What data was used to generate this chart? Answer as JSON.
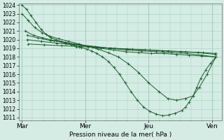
{
  "bg_color": "#d4ece4",
  "grid_color": "#a8ccc0",
  "line_color": "#1a5c2a",
  "xlabel": "Pression niveau de la mer( hPa )",
  "ylim": [
    1011,
    1024
  ],
  "ytick_min": 1011,
  "ytick_max": 1024,
  "xtick_labels": [
    "Mar",
    "Mer",
    "Jeu",
    "Ven"
  ],
  "xtick_positions": [
    0.0,
    1.0,
    2.0,
    3.0
  ],
  "xlim": [
    -0.05,
    3.15
  ],
  "lines": [
    {
      "x": [
        0.0,
        0.07,
        0.14,
        0.22,
        0.3,
        0.38,
        0.46,
        0.54,
        0.62,
        0.7,
        0.78,
        0.86,
        0.94,
        1.02,
        1.1,
        1.18,
        1.27,
        1.36,
        1.45,
        1.54,
        1.63,
        1.72,
        1.82,
        1.92,
        2.02,
        2.12,
        2.22,
        2.32,
        2.42,
        2.52,
        2.58,
        2.64,
        2.7,
        2.76,
        2.82,
        2.9,
        2.98,
        3.06
      ],
      "y": [
        1024.0,
        1023.5,
        1022.8,
        1022.0,
        1021.2,
        1020.6,
        1020.2,
        1020.0,
        1019.8,
        1019.6,
        1019.4,
        1019.2,
        1019.1,
        1018.9,
        1018.7,
        1018.4,
        1018.0,
        1017.5,
        1016.8,
        1016.0,
        1015.0,
        1014.0,
        1013.0,
        1012.2,
        1011.7,
        1011.4,
        1011.2,
        1011.3,
        1011.5,
        1011.8,
        1012.2,
        1012.8,
        1013.5,
        1014.5,
        1015.5,
        1016.5,
        1017.3,
        1018.0
      ]
    },
    {
      "x": [
        0.0,
        0.1,
        0.2,
        0.32,
        0.44,
        0.58,
        0.74,
        0.9,
        1.05,
        1.2,
        1.36,
        1.52,
        1.68,
        1.84,
        2.0,
        2.16,
        2.3,
        2.44,
        2.58,
        2.7,
        2.8,
        2.92,
        3.06
      ],
      "y": [
        1023.0,
        1022.2,
        1021.4,
        1020.8,
        1020.4,
        1020.1,
        1019.8,
        1019.5,
        1019.2,
        1018.9,
        1018.5,
        1018.0,
        1017.2,
        1016.2,
        1015.0,
        1014.0,
        1013.2,
        1013.0,
        1013.2,
        1013.5,
        1014.5,
        1016.0,
        1018.0
      ]
    },
    {
      "x": [
        0.05,
        0.18,
        0.33,
        0.5,
        0.68,
        0.86,
        1.04,
        1.24,
        1.44,
        1.64,
        1.84,
        2.04,
        2.24,
        2.44,
        2.64,
        2.84,
        3.06
      ],
      "y": [
        1021.0,
        1020.5,
        1020.2,
        1019.9,
        1019.6,
        1019.4,
        1019.2,
        1019.0,
        1018.8,
        1018.6,
        1018.5,
        1018.4,
        1018.4,
        1018.3,
        1018.2,
        1018.1,
        1018.0
      ]
    },
    {
      "x": [
        0.08,
        0.25,
        0.45,
        0.68,
        0.92,
        1.16,
        1.4,
        1.64,
        1.88,
        2.12,
        2.36,
        2.6,
        2.84,
        3.06
      ],
      "y": [
        1020.5,
        1020.2,
        1019.9,
        1019.7,
        1019.4,
        1019.2,
        1019.0,
        1018.8,
        1018.7,
        1018.6,
        1018.5,
        1018.4,
        1018.2,
        1018.0
      ]
    },
    {
      "x": [
        0.08,
        0.3,
        0.55,
        0.82,
        1.1,
        1.38,
        1.66,
        1.94,
        2.22,
        2.5,
        2.78,
        3.06
      ],
      "y": [
        1020.0,
        1019.8,
        1019.6,
        1019.4,
        1019.2,
        1019.0,
        1018.9,
        1018.8,
        1018.7,
        1018.6,
        1018.5,
        1018.3
      ]
    },
    {
      "x": [
        0.1,
        0.35,
        0.62,
        0.9,
        1.18,
        1.46,
        1.74,
        2.02,
        2.3,
        2.58,
        2.86,
        3.06
      ],
      "y": [
        1019.5,
        1019.4,
        1019.3,
        1019.2,
        1019.1,
        1019.0,
        1018.9,
        1018.8,
        1018.7,
        1018.6,
        1018.5,
        1018.4
      ]
    }
  ]
}
